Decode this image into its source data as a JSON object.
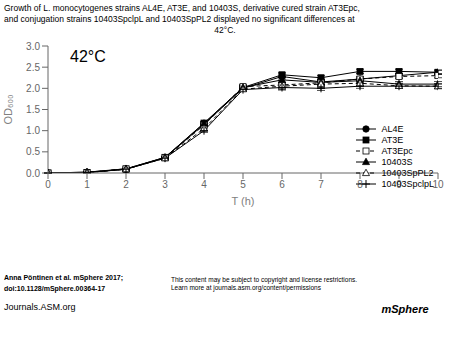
{
  "chart_data": {
    "type": "line",
    "title": [
      "Growth of L. monocytogenes strains AL4E, AT3E, and 10403S, derivative cured strain AT3Epc,",
      "and conjugation strains 10403SpclpL and 10403SpPL2 displayed no significant differences at",
      "42°C."
    ],
    "x_label": "T (h)",
    "y_label": "OD₆₀₀",
    "annotations": [
      "42°C",
      "Anna Pöntinen et al. mSphere 2017;",
      "doi:10.1128/mSphere.00364-17",
      "Journals.ASM.org",
      "This content may be subject to copyright and license restrictions.\nLearn more at journals.asm.org/content/permissions",
      "mSphere"
    ],
    "x": [
      0,
      1,
      2,
      3,
      4,
      5,
      6,
      7,
      8,
      9,
      10
    ],
    "xlim": [
      0,
      10
    ],
    "ylim": [
      0,
      3
    ],
    "xticks": [
      0,
      1,
      2,
      3,
      4,
      5,
      6,
      7,
      8,
      9,
      10
    ],
    "yticks": [
      {
        "value": 0,
        "label": "0.0"
      },
      0.5,
      {
        "value": 1,
        "label": "1.0"
      },
      1.5,
      {
        "value": 2,
        "label": "2.0"
      },
      2.5,
      {
        "value": 3,
        "label": "3.0"
      }
    ],
    "legend": "right",
    "grid": false,
    "series": [
      {
        "name": "AL4E",
        "color": "#000000",
        "marker": "circle",
        "line_style": "solid",
        "values": [
          0.0,
          0.02,
          0.09,
          0.36,
          1.15,
          2.0,
          2.28,
          2.15,
          2.22,
          2.3,
          2.38
        ],
        "error_bars": [
          0.005,
          0.005,
          0.01,
          0.02,
          0.04,
          0.04,
          0.06,
          0.06,
          0.05,
          0.05,
          0.05
        ]
      },
      {
        "name": "AT3E",
        "color": "#000000",
        "marker": "square",
        "line_style": "solid",
        "values": [
          0.0,
          0.01,
          0.09,
          0.37,
          1.18,
          2.02,
          2.32,
          2.25,
          2.4,
          2.4,
          2.38
        ],
        "error_bars": [
          0.005,
          0.005,
          0.01,
          0.02,
          0.04,
          0.04,
          0.05,
          0.05,
          0.05,
          0.05,
          0.05
        ]
      },
      {
        "name": "AT3Epc",
        "color": "#000000",
        "marker": "square-open",
        "line_style": "dashed",
        "values": [
          0.0,
          0.01,
          0.1,
          0.36,
          1.13,
          2.04,
          2.08,
          2.13,
          2.22,
          2.28,
          2.3
        ],
        "error_bars": [
          0.005,
          0.005,
          0.01,
          0.02,
          0.04,
          0.04,
          0.05,
          0.05,
          0.05,
          0.05,
          0.05
        ]
      },
      {
        "name": "10403S",
        "color": "#000000",
        "marker": "triangle",
        "line_style": "solid",
        "values": [
          0.0,
          0.02,
          0.1,
          0.37,
          1.17,
          2.02,
          2.2,
          2.14,
          2.18,
          2.1,
          2.1
        ],
        "error_bars": [
          0.005,
          0.005,
          0.01,
          0.02,
          0.04,
          0.04,
          0.06,
          0.08,
          0.06,
          0.06,
          0.06
        ]
      },
      {
        "name": "10403SpPL2",
        "color": "#000000",
        "marker": "triangle-open",
        "line_style": "dashed",
        "values": [
          0.0,
          0.01,
          0.09,
          0.35,
          1.05,
          1.98,
          2.05,
          2.1,
          2.12,
          2.06,
          2.05
        ],
        "error_bars": [
          0.005,
          0.005,
          0.01,
          0.02,
          0.06,
          0.05,
          0.07,
          0.08,
          0.06,
          0.06,
          0.06
        ]
      },
      {
        "name": "10403SpclpL",
        "color": "#000000",
        "marker": "plus",
        "line_style": "solid",
        "values": [
          0.0,
          0.01,
          0.09,
          0.35,
          1.0,
          1.97,
          2.02,
          2.0,
          2.05,
          2.05,
          2.05
        ],
        "error_bars": [
          0.005,
          0.005,
          0.01,
          0.02,
          0.04,
          0.04,
          0.06,
          0.05,
          0.05,
          0.05,
          0.05
        ]
      }
    ]
  }
}
